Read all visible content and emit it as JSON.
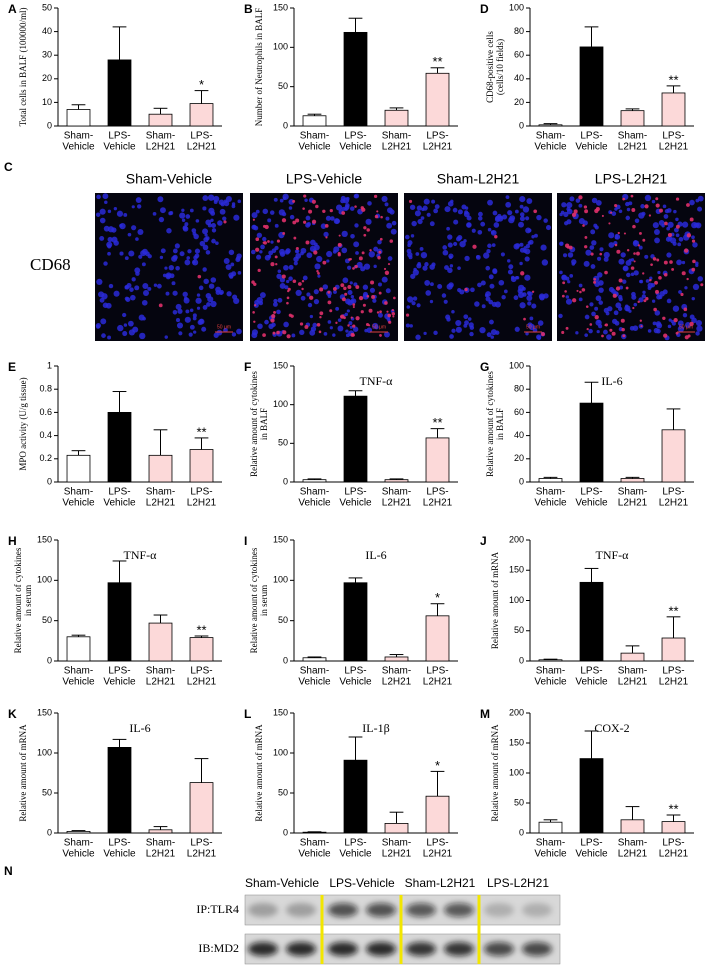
{
  "chart_data": [
    {
      "type": "bar",
      "panel": "A",
      "y_label": "Total cells in BALF (100000/ml)",
      "categories": [
        "Sham-\nVehicle",
        "LPS-\nVehicle",
        "Sham-\nL2H21",
        "LPS-\nL2H21"
      ],
      "values": [
        7,
        28,
        5,
        9.5
      ],
      "errors": [
        2,
        14,
        2.5,
        5.5
      ],
      "stars": [
        null,
        null,
        null,
        "*"
      ],
      "colors": [
        "#ffffff",
        "#000000",
        "#fcd9d9",
        "#fcd9d9"
      ],
      "ylim": [
        0,
        50
      ],
      "yticks": [
        0,
        10,
        20,
        30,
        40,
        50
      ]
    },
    {
      "type": "bar",
      "panel": "B",
      "y_label": "Number of Neutrophils in BALF",
      "categories": [
        "Sham-\nVehicle",
        "LPS-\nVehicle",
        "Sham-\nL2H21",
        "LPS-\nL2H21"
      ],
      "values": [
        13,
        119,
        20,
        67
      ],
      "errors": [
        2,
        18,
        3,
        7
      ],
      "stars": [
        null,
        null,
        null,
        "**"
      ],
      "colors": [
        "#ffffff",
        "#000000",
        "#fcd9d9",
        "#fcd9d9"
      ],
      "ylim": [
        0,
        150
      ],
      "yticks": [
        0,
        50,
        100,
        150
      ]
    },
    {
      "type": "bar",
      "panel": "D",
      "y_label": "CD68-positive cells\n(cells/10 fields)",
      "categories": [
        "Sham-\nVehicle",
        "LPS-\nVehicle",
        "Sham-\nL2H21",
        "LPS-\nL2H21"
      ],
      "values": [
        1,
        67,
        13,
        28
      ],
      "errors": [
        1,
        17,
        1.5,
        6
      ],
      "stars": [
        null,
        null,
        null,
        "**"
      ],
      "colors": [
        "#ffffff",
        "#000000",
        "#fcd9d9",
        "#fcd9d9"
      ],
      "ylim": [
        0,
        100
      ],
      "yticks": [
        0,
        20,
        40,
        60,
        80,
        100
      ]
    },
    {
      "type": "bar",
      "panel": "E",
      "y_label": "MPO activity (U/g tissue)",
      "categories": [
        "Sham-\nVehicle",
        "LPS-\nVehicle",
        "Sham-\nL2H21",
        "LPS-\nL2H21"
      ],
      "values": [
        0.23,
        0.6,
        0.23,
        0.28
      ],
      "errors": [
        0.04,
        0.18,
        0.22,
        0.1
      ],
      "stars": [
        null,
        null,
        null,
        "**"
      ],
      "colors": [
        "#ffffff",
        "#000000",
        "#fcd9d9",
        "#fcd9d9"
      ],
      "ylim": [
        0,
        1
      ],
      "yticks": [
        0,
        0.2,
        0.4,
        0.6,
        0.8,
        1
      ]
    },
    {
      "type": "bar",
      "panel": "F",
      "title": "TNF-α",
      "y_label": "Relative amount of cytokines\nin BALF",
      "categories": [
        "Sham-\nVehicle",
        "LPS-\nVehicle",
        "Sham-\nL2H21",
        "LPS-\nL2H21"
      ],
      "values": [
        3,
        111,
        3,
        57
      ],
      "errors": [
        1,
        7,
        1,
        12
      ],
      "stars": [
        null,
        null,
        null,
        "**"
      ],
      "colors": [
        "#ffffff",
        "#000000",
        "#fcd9d9",
        "#fcd9d9"
      ],
      "ylim": [
        0,
        150
      ],
      "yticks": [
        0,
        50,
        100,
        150
      ]
    },
    {
      "type": "bar",
      "panel": "G",
      "title": "IL-6",
      "y_label": "Relative amount of cytokines\nin BALF",
      "categories": [
        "Sham-\nVehicle",
        "LPS-\nVehicle",
        "Sham-\nL2H21",
        "LPS-\nL2H21"
      ],
      "values": [
        3,
        68,
        3,
        45
      ],
      "errors": [
        1,
        18,
        1,
        18
      ],
      "stars": [
        null,
        null,
        null,
        null
      ],
      "colors": [
        "#ffffff",
        "#000000",
        "#fcd9d9",
        "#fcd9d9"
      ],
      "ylim": [
        0,
        100
      ],
      "yticks": [
        0,
        20,
        40,
        60,
        80,
        100
      ]
    },
    {
      "type": "bar",
      "panel": "H",
      "title": "TNF-α",
      "y_label": "Relative amount of cytokines\nin serum",
      "categories": [
        "Sham-\nVehicle",
        "LPS-\nVehicle",
        "Sham-\nL2H21",
        "LPS-\nL2H21"
      ],
      "values": [
        30,
        97,
        47,
        29
      ],
      "errors": [
        2,
        27,
        10,
        2
      ],
      "stars": [
        null,
        null,
        null,
        "**"
      ],
      "colors": [
        "#ffffff",
        "#000000",
        "#fcd9d9",
        "#fcd9d9"
      ],
      "ylim": [
        0,
        150
      ],
      "yticks": [
        0,
        50,
        100,
        150
      ]
    },
    {
      "type": "bar",
      "panel": "I",
      "title": "IL-6",
      "y_label": "Relative amount of cytokines\nin serum",
      "categories": [
        "Sham-\nVehicle",
        "LPS-\nVehicle",
        "Sham-\nL2H21",
        "LPS-\nL2H21"
      ],
      "values": [
        4,
        97,
        5,
        56
      ],
      "errors": [
        1,
        6,
        3,
        15
      ],
      "stars": [
        null,
        null,
        null,
        "*"
      ],
      "colors": [
        "#ffffff",
        "#000000",
        "#fcd9d9",
        "#fcd9d9"
      ],
      "ylim": [
        0,
        150
      ],
      "yticks": [
        0,
        50,
        100,
        150
      ]
    },
    {
      "type": "bar",
      "panel": "J",
      "title": "TNF-α",
      "y_label": "Relative amount of mRNA",
      "categories": [
        "Sham-\nVehicle",
        "LPS-\nVehicle",
        "Sham-\nL2H21",
        "LPS-\nL2H21"
      ],
      "values": [
        2,
        130,
        13,
        38
      ],
      "errors": [
        1,
        23,
        12,
        35
      ],
      "stars": [
        null,
        null,
        null,
        "**"
      ],
      "colors": [
        "#ffffff",
        "#000000",
        "#fcd9d9",
        "#fcd9d9"
      ],
      "ylim": [
        0,
        200
      ],
      "yticks": [
        0,
        50,
        100,
        150,
        200
      ]
    },
    {
      "type": "bar",
      "panel": "K",
      "title": "IL-6",
      "y_label": "Relative amount of mRNA",
      "categories": [
        "Sham-\nVehicle",
        "LPS-\nVehicle",
        "Sham-\nL2H21",
        "LPS-\nL2H21"
      ],
      "values": [
        2,
        107,
        4,
        63
      ],
      "errors": [
        1,
        10,
        4,
        30
      ],
      "stars": [
        null,
        null,
        null,
        null
      ],
      "colors": [
        "#ffffff",
        "#000000",
        "#fcd9d9",
        "#fcd9d9"
      ],
      "ylim": [
        0,
        150
      ],
      "yticks": [
        0,
        50,
        100,
        150
      ]
    },
    {
      "type": "bar",
      "panel": "L",
      "title": "IL-1β",
      "y_label": "Relative amount of mRNA",
      "categories": [
        "Sham-\nVehicle",
        "LPS-\nVehicle",
        "Sham-\nL2H21",
        "LPS-\nL2H21"
      ],
      "values": [
        1,
        91,
        12,
        46
      ],
      "errors": [
        0.5,
        29,
        14,
        31
      ],
      "stars": [
        null,
        null,
        null,
        "*"
      ],
      "colors": [
        "#ffffff",
        "#000000",
        "#fcd9d9",
        "#fcd9d9"
      ],
      "ylim": [
        0,
        150
      ],
      "yticks": [
        0,
        50,
        100,
        150
      ]
    },
    {
      "type": "bar",
      "panel": "M",
      "title": "COX-2",
      "y_label": "Relative amount of mRNA",
      "categories": [
        "Sham-\nVehicle",
        "LPS-\nVehicle",
        "Sham-\nL2H21",
        "LPS-\nL2H21"
      ],
      "values": [
        18,
        124,
        22,
        19
      ],
      "errors": [
        4,
        46,
        22,
        11
      ],
      "stars": [
        null,
        null,
        null,
        "**"
      ],
      "colors": [
        "#ffffff",
        "#000000",
        "#fcd9d9",
        "#fcd9d9"
      ],
      "ylim": [
        0,
        200
      ],
      "yticks": [
        0,
        50,
        100,
        150,
        200
      ]
    }
  ],
  "micrographs": {
    "panel": "C",
    "stain": "CD68",
    "titles": [
      "Sham-Vehicle",
      "LPS-Vehicle",
      "Sham-L2H21",
      "LPS-L2H21"
    ],
    "scale_bar": "50 μm"
  },
  "blot": {
    "panel": "N",
    "lanes": [
      "Sham-Vehicle",
      "LPS-Vehicle",
      "Sham-L2H21",
      "LPS-L2H21"
    ],
    "rows": [
      "IP:TLR4",
      "IB:MD2"
    ]
  }
}
